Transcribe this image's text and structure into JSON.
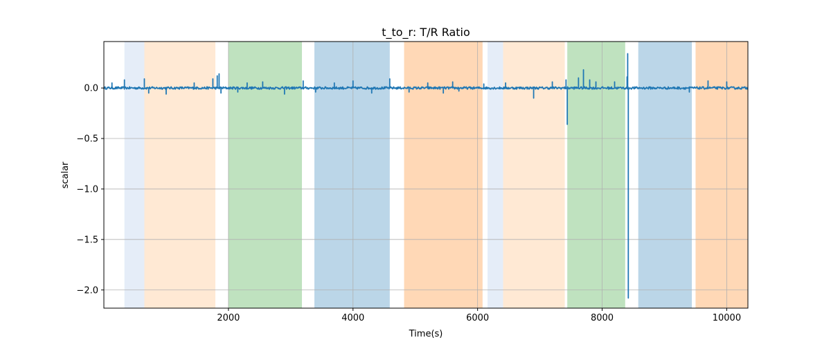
{
  "chart_data": {
    "type": "line",
    "title": "t_to_r: T/R Ratio",
    "xlabel": "Time(s)",
    "ylabel": "scalar",
    "xlim": [
      0,
      10340
    ],
    "ylim": [
      -2.18,
      0.46
    ],
    "grid": true,
    "x_ticks": [
      2000,
      4000,
      6000,
      8000,
      10000
    ],
    "x_tick_labels": [
      "2000",
      "4000",
      "6000",
      "8000",
      "10000"
    ],
    "y_ticks": [
      0.0,
      -0.5,
      -1.0,
      -1.5,
      -2.0
    ],
    "y_tick_labels": [
      "0.0",
      "−0.5",
      "−1.0",
      "−1.5",
      "−2.0"
    ],
    "shaded_regions": [
      {
        "x0": 330,
        "x1": 650,
        "color": "#aec7e8",
        "opacity": 0.32
      },
      {
        "x0": 650,
        "x1": 1790,
        "color": "#ffbb78",
        "opacity": 0.32
      },
      {
        "x0": 2000,
        "x1": 3180,
        "color": "#2ca02c",
        "opacity": 0.3
      },
      {
        "x0": 3380,
        "x1": 4590,
        "color": "#1f77b4",
        "opacity": 0.3
      },
      {
        "x0": 4820,
        "x1": 6080,
        "color": "#ff7f0e",
        "opacity": 0.3
      },
      {
        "x0": 6160,
        "x1": 6410,
        "color": "#aec7e8",
        "opacity": 0.32
      },
      {
        "x0": 6410,
        "x1": 7400,
        "color": "#ffbb78",
        "opacity": 0.32
      },
      {
        "x0": 7440,
        "x1": 8370,
        "color": "#2ca02c",
        "opacity": 0.3
      },
      {
        "x0": 8580,
        "x1": 9440,
        "color": "#1f77b4",
        "opacity": 0.3
      },
      {
        "x0": 9500,
        "x1": 10340,
        "color": "#ff7f0e",
        "opacity": 0.3
      }
    ],
    "series": [
      {
        "color": "#1f77b4",
        "baseline": 0.0,
        "noise_amplitude": 0.012,
        "spikes": [
          [
            130,
            0.05
          ],
          [
            330,
            0.08
          ],
          [
            650,
            0.09
          ],
          [
            720,
            -0.05
          ],
          [
            1000,
            -0.06
          ],
          [
            1450,
            0.05
          ],
          [
            1750,
            0.09
          ],
          [
            1820,
            0.12
          ],
          [
            1850,
            0.14
          ],
          [
            1880,
            -0.05
          ],
          [
            2150,
            -0.04
          ],
          [
            2300,
            0.05
          ],
          [
            2550,
            0.06
          ],
          [
            2900,
            -0.06
          ],
          [
            3200,
            0.07
          ],
          [
            3400,
            -0.04
          ],
          [
            3700,
            0.05
          ],
          [
            4000,
            0.07
          ],
          [
            4300,
            -0.05
          ],
          [
            4590,
            0.09
          ],
          [
            4900,
            -0.04
          ],
          [
            5200,
            0.05
          ],
          [
            5450,
            -0.05
          ],
          [
            5600,
            0.06
          ],
          [
            5700,
            -0.03
          ],
          [
            6100,
            0.04
          ],
          [
            6450,
            0.05
          ],
          [
            6900,
            -0.1
          ],
          [
            7200,
            0.06
          ],
          [
            7420,
            0.08
          ],
          [
            7620,
            0.1
          ],
          [
            7700,
            0.18
          ],
          [
            7800,
            0.08
          ],
          [
            7900,
            0.06
          ],
          [
            8200,
            0.06
          ],
          [
            8400,
            0.11
          ],
          [
            9400,
            -0.04
          ],
          [
            9700,
            0.07
          ],
          [
            10000,
            0.06
          ],
          [
            10350,
            0.06
          ]
        ],
        "big_events": [
          [
            7440,
            -0.36
          ],
          [
            8410,
            0.34
          ],
          [
            8420,
            -2.08
          ]
        ]
      }
    ]
  }
}
